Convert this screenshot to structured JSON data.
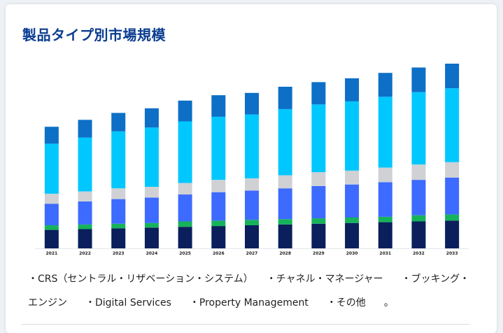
{
  "title": "製品タイプ別市場規模",
  "chart_data": {
    "type": "bar",
    "stacked": true,
    "categories": [
      "2021",
      "2022",
      "2023",
      "2024",
      "2025",
      "2026",
      "2027",
      "2028",
      "2029",
      "2030",
      "2031",
      "2032",
      "2033"
    ],
    "series": [
      {
        "color": "#0a1f5c",
        "values": [
          24,
          25,
          26,
          27,
          28,
          29,
          30,
          31,
          32,
          33,
          34,
          35,
          36
        ]
      },
      {
        "color": "#16b35b",
        "values": [
          6,
          6,
          6,
          6,
          7,
          7,
          7,
          7,
          7,
          7,
          7,
          8,
          8
        ]
      },
      {
        "color": "#3d6bff",
        "values": [
          28,
          30,
          32,
          33,
          35,
          37,
          38,
          40,
          42,
          43,
          45,
          46,
          48
        ]
      },
      {
        "color": "#cfd1d4",
        "values": [
          13,
          13,
          14,
          14,
          15,
          16,
          16,
          17,
          18,
          18,
          19,
          20,
          20
        ]
      },
      {
        "color": "#00c8ff",
        "values": [
          65,
          70,
          74,
          77,
          80,
          82,
          83,
          86,
          88,
          90,
          92,
          94,
          96
        ]
      },
      {
        "color": "#0d6fc6",
        "values": [
          22,
          23,
          24,
          25,
          27,
          28,
          28,
          29,
          29,
          30,
          31,
          32,
          32
        ]
      }
    ],
    "ylim": [
      0,
      250
    ],
    "grid": false,
    "legend": [
      "・CRS（セントラル・リザベーション・システム）",
      "・チャネル・マネージャー",
      "・ブッキング・エンジン",
      "・Digital Services",
      "・Property Management",
      "・その他"
    ],
    "legend_suffix": "。"
  }
}
